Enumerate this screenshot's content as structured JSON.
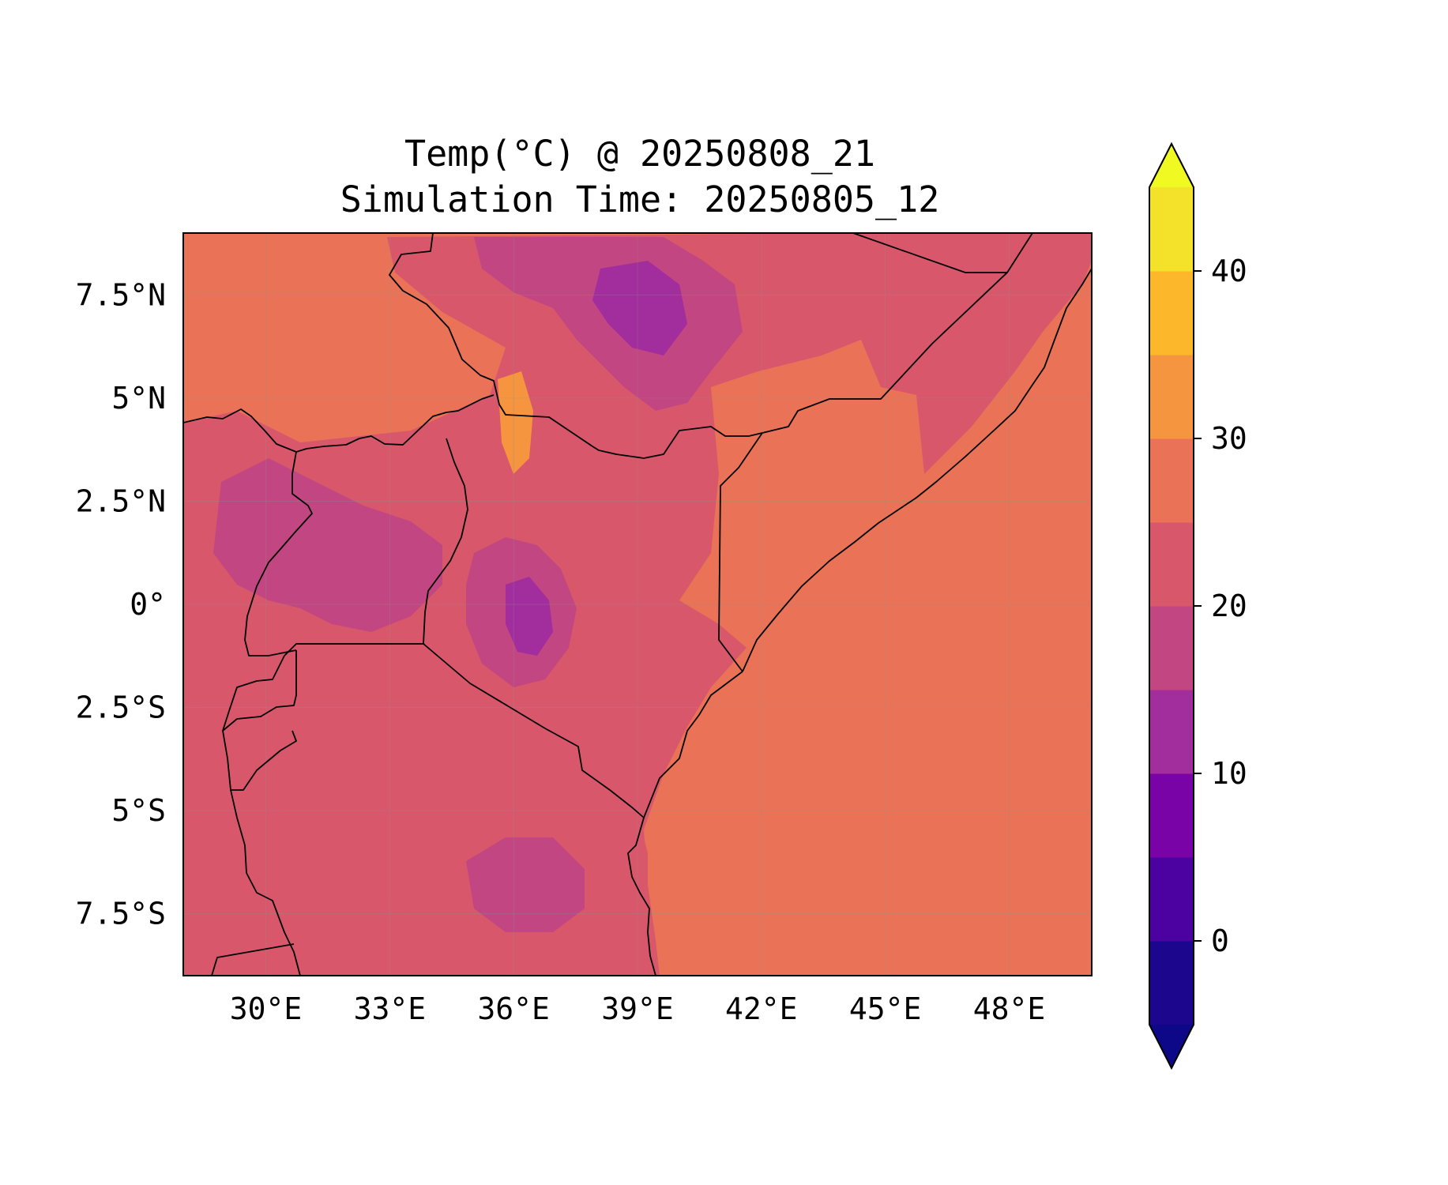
{
  "title": {
    "line1": "Temp(°C) @ 20250808_21",
    "line2": "Simulation Time: 20250805_12"
  },
  "map": {
    "lon_range": [
      28,
      50
    ],
    "lat_range": [
      -9,
      9
    ],
    "x_ticks": [
      {
        "value": 30,
        "label": "30°E"
      },
      {
        "value": 33,
        "label": "33°E"
      },
      {
        "value": 36,
        "label": "36°E"
      },
      {
        "value": 39,
        "label": "39°E"
      },
      {
        "value": 42,
        "label": "42°E"
      },
      {
        "value": 45,
        "label": "45°E"
      },
      {
        "value": 48,
        "label": "48°E"
      }
    ],
    "y_ticks": [
      {
        "value": 7.5,
        "label": "7.5°N"
      },
      {
        "value": 5,
        "label": "5°N"
      },
      {
        "value": 2.5,
        "label": "2.5°N"
      },
      {
        "value": 0,
        "label": "0°"
      },
      {
        "value": -2.5,
        "label": "2.5°S"
      },
      {
        "value": -5,
        "label": "5°S"
      },
      {
        "value": -7.5,
        "label": "7.5°S"
      }
    ],
    "grid": true
  },
  "colorbar": {
    "levels": [
      -5,
      0,
      5,
      10,
      15,
      20,
      25,
      30,
      35,
      40,
      45
    ],
    "colors": [
      "#1b068d",
      "#4b02a0",
      "#7a03a7",
      "#a22d9d",
      "#c24681",
      "#d8576b",
      "#ea7357",
      "#f6953f",
      "#fdb72b",
      "#f4e22a"
    ],
    "under_color": "#0d0887",
    "over_color": "#f0f921",
    "extend": "both",
    "ticks": [
      {
        "value": 0,
        "label": "0"
      },
      {
        "value": 10,
        "label": "10"
      },
      {
        "value": 20,
        "label": "20"
      },
      {
        "value": 30,
        "label": "30"
      },
      {
        "value": 40,
        "label": "40"
      }
    ]
  },
  "fill_colors": {
    "ocean": "#ea7357",
    "warm": "#f6953f",
    "mild": "#d8576b",
    "cool": "#c24681",
    "cold": "#a22d9d",
    "very_cold": "#7a03a7"
  }
}
